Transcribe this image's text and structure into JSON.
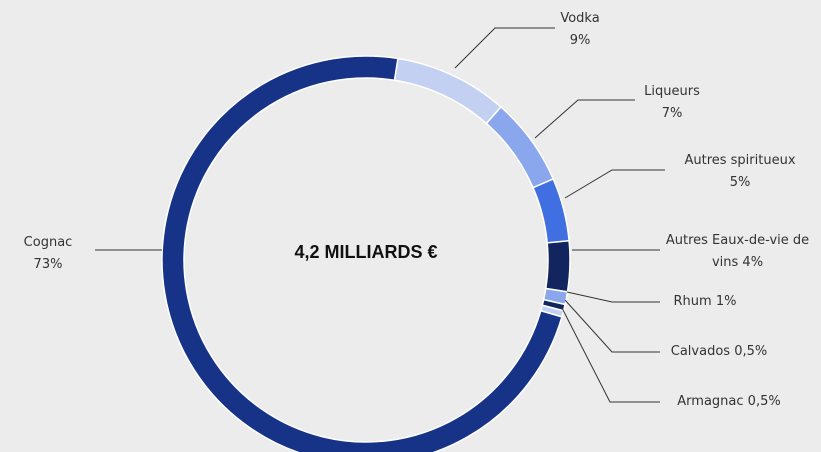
{
  "chart_data": {
    "type": "donut",
    "center_label": "4,2 MILLIARDS €",
    "categories": [
      "Vodka",
      "Liqueurs",
      "Autres spiritueux",
      "Autres Eaux-de-vie de vins",
      "Rhum",
      "Calvados",
      "Armagnac",
      "Cognac"
    ],
    "values": [
      9,
      7,
      5,
      4,
      1,
      0.5,
      0.5,
      73
    ],
    "value_labels": [
      "9%",
      "7%",
      "5%",
      "4%",
      "1%",
      "0,5%",
      "0,5%",
      "73%"
    ],
    "colors": [
      "#c3d0f2",
      "#8aa6ec",
      "#3f6fe0",
      "#13255e",
      "#8aa6ec",
      "#13255e",
      "#c3d0f2",
      "#163387"
    ]
  }
}
